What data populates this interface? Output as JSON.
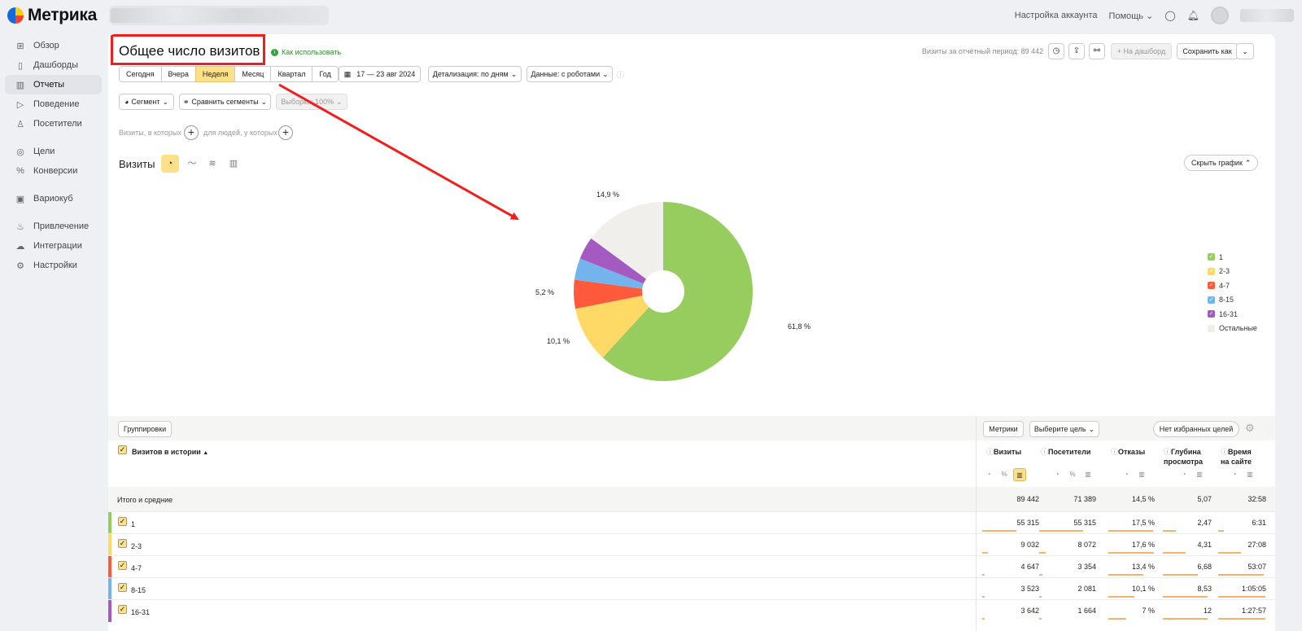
{
  "app": {
    "name": "Метрика"
  },
  "top_nav": {
    "account_settings": "Настройка аккаунта",
    "help": "Помощь"
  },
  "sidebar": {
    "items": [
      {
        "label": "Обзор",
        "icon": "grid-icon"
      },
      {
        "label": "Дашборды",
        "icon": "dashboard-icon"
      },
      {
        "label": "Отчеты",
        "icon": "bar-chart-icon",
        "active": true
      },
      {
        "label": "Поведение",
        "icon": "play-icon"
      },
      {
        "label": "Посетители",
        "icon": "person-icon"
      },
      {
        "label": "Цели",
        "icon": "target-icon"
      },
      {
        "label": "Конверсии",
        "icon": "percent-icon"
      },
      {
        "label": "Вариокуб",
        "icon": "cube-icon"
      },
      {
        "label": "Привлечение",
        "icon": "flame-icon"
      },
      {
        "label": "Интеграции",
        "icon": "cloud-icon"
      },
      {
        "label": "Настройки",
        "icon": "gear-icon"
      }
    ]
  },
  "report": {
    "title": "Общее число визитов",
    "help_link": "Как использовать",
    "visits_total": "Визиты за отчётный период: 89 442",
    "to_dashboard": "+ На дашборд",
    "save_as": "Сохранить как"
  },
  "periods": [
    "Сегодня",
    "Вчера",
    "Неделя",
    "Месяц",
    "Квартал",
    "Год"
  ],
  "selected_period": "Неделя",
  "date_range": "17 — 23 авг 2024",
  "detalization": "Детализация: по дням",
  "data_filter": "Данные: с роботами",
  "segment": "Сегмент",
  "compare_segments": "Сравнить сегменты",
  "sample": "Выборка: 100%",
  "filter_visits": "Визиты, в которых",
  "filter_people": "для людей, у которых",
  "chart_section": {
    "label": "Визиты",
    "hide_button": "Скрыть график"
  },
  "chart_data": {
    "type": "pie",
    "categories": [
      "1",
      "2-3",
      "4-7",
      "8-15",
      "16-31",
      "Остальные"
    ],
    "values": [
      61.8,
      10.1,
      5.2,
      3.9,
      4.1,
      14.9
    ],
    "labels": [
      "61,8 %",
      "10,1 %",
      "5,2 %",
      "",
      "",
      "14,9 %"
    ],
    "colors": [
      "#97cc5f",
      "#ffd966",
      "#ff5a3c",
      "#74b4ec",
      "#a45ac0",
      "#f0efeb"
    ]
  },
  "table": {
    "groupings_button": "Группировки",
    "metrics_button": "Метрики",
    "goal_select": "Выберите цель",
    "favorites_button": "Нет избранных целей",
    "dimension_header": "Визитов в истории",
    "sort_arrow": "▲",
    "columns": [
      {
        "line1": "Визиты",
        "line2": ""
      },
      {
        "line1": "Посетители",
        "line2": ""
      },
      {
        "line1": "Отказы",
        "line2": ""
      },
      {
        "line1": "Глубина",
        "line2": "просмотра"
      },
      {
        "line1": "Время",
        "line2": "на сайте"
      }
    ],
    "totals": {
      "label": "Итого и средние",
      "values": [
        "89 442",
        "71 389",
        "14,5 %",
        "5,07",
        "32:58"
      ]
    },
    "rows": [
      {
        "label": "1",
        "values": [
          "55 315",
          "55 315",
          "17,5 %",
          "2,47",
          "6:31"
        ],
        "share": [
          0.62,
          0.77,
          0.99,
          0.29,
          0.12
        ]
      },
      {
        "label": "2-3",
        "values": [
          "9 032",
          "8 072",
          "17,6 %",
          "4,31",
          "27:08"
        ],
        "share": [
          0.1,
          0.11,
          1.0,
          0.51,
          0.49
        ]
      },
      {
        "label": "4-7",
        "values": [
          "4 647",
          "3 354",
          "13,4 %",
          "6,68",
          "53:07"
        ],
        "share": [
          0.05,
          0.05,
          0.76,
          0.78,
          0.97
        ]
      },
      {
        "label": "8-15",
        "values": [
          "3 523",
          "2 081",
          "10,1 %",
          "8,53",
          "1:05:05"
        ],
        "share": [
          0.04,
          0.03,
          0.57,
          1.0,
          1.0
        ]
      },
      {
        "label": "16-31",
        "values": [
          "3 642",
          "1 664",
          "7 %",
          "12",
          "1:27:57"
        ],
        "share": [
          0.04,
          0.02,
          0.4,
          1.0,
          1.0
        ]
      }
    ]
  },
  "accent_color": "#ffe08a",
  "annotation_color": "#f21d1d"
}
